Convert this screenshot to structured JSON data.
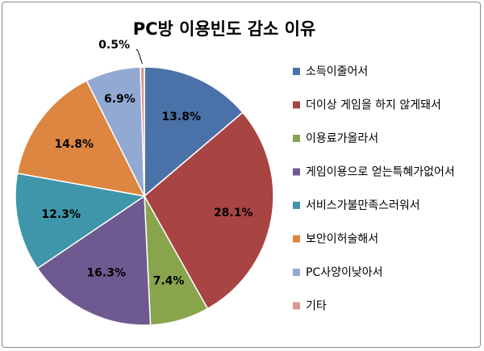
{
  "chart_data": {
    "type": "pie",
    "title": "PC방 이용빈도 감소 이유",
    "categories": [
      "소득이줄어서",
      "더이상 게임을 하지 않게돼서",
      "이용료가올라서",
      "게임이용으로 얻는특혜가없어서",
      "서비스가불만족스러워서",
      "보안이허술해서",
      "PC사양이낮아서",
      "기타"
    ],
    "values": [
      13.8,
      28.1,
      7.4,
      16.3,
      12.3,
      14.8,
      6.9,
      0.5
    ],
    "data_labels": [
      "13.8%",
      "28.1%",
      "7.4%",
      "16.3%",
      "12.3%",
      "14.8%",
      "6.9%",
      "0.5%"
    ],
    "colors": [
      "#4a72a8",
      "#a84442",
      "#88a54d",
      "#6e5a91",
      "#3f95aa",
      "#dd8641",
      "#92a9d1",
      "#d99896"
    ],
    "legend_position": "right",
    "start_angle": "12 o'clock, clockwise"
  }
}
